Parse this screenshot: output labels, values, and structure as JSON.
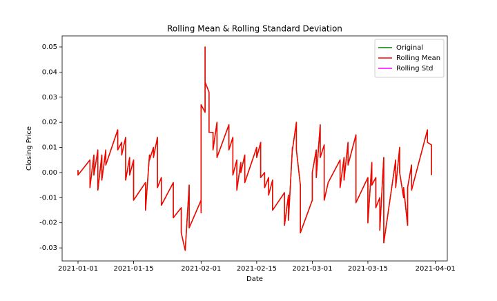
{
  "chart_data": {
    "type": "line",
    "title": "Rolling Mean & Rolling Standard Deviation",
    "x_label": "Date",
    "y_label": "Closing Price",
    "x": [
      "2021-01-01",
      "2021-01-01",
      "2021-01-04",
      "2021-01-04",
      "2021-01-05",
      "2021-01-05",
      "2021-01-06",
      "2021-01-06",
      "2021-01-07",
      "2021-01-07",
      "2021-01-08",
      "2021-01-08",
      "2021-01-11",
      "2021-01-11",
      "2021-01-12",
      "2021-01-12",
      "2021-01-13",
      "2021-01-13",
      "2021-01-14",
      "2021-01-14",
      "2021-01-15",
      "2021-01-15",
      "2021-01-18",
      "2021-01-18",
      "2021-01-19",
      "2021-01-19",
      "2021-01-20",
      "2021-01-20",
      "2021-01-21",
      "2021-01-21",
      "2021-01-22",
      "2021-01-22",
      "2021-01-25",
      "2021-01-25",
      "2021-01-27",
      "2021-01-27",
      "2021-01-28",
      "2021-01-29",
      "2021-01-29",
      "2021-02-01",
      "2021-02-01",
      "2021-02-01",
      "2021-02-02",
      "2021-02-02",
      "2021-02-02",
      "2021-02-03",
      "2021-02-03",
      "2021-02-04",
      "2021-02-04",
      "2021-02-05",
      "2021-02-05",
      "2021-02-08",
      "2021-02-08",
      "2021-02-09",
      "2021-02-09",
      "2021-02-10",
      "2021-02-10",
      "2021-02-11",
      "2021-02-11",
      "2021-02-12",
      "2021-02-12",
      "2021-02-15",
      "2021-02-15",
      "2021-02-16",
      "2021-02-16",
      "2021-02-17",
      "2021-02-17",
      "2021-02-18",
      "2021-02-18",
      "2021-02-19",
      "2021-02-19",
      "2021-02-22",
      "2021-02-22",
      "2021-02-23",
      "2021-02-23",
      "2021-02-24",
      "2021-02-24",
      "2021-02-25",
      "2021-02-25",
      "2021-02-26",
      "2021-02-26",
      "2021-03-01",
      "2021-03-01",
      "2021-03-02",
      "2021-03-02",
      "2021-03-03",
      "2021-03-03",
      "2021-03-04",
      "2021-03-04",
      "2021-03-05",
      "2021-03-08",
      "2021-03-08",
      "2021-03-09",
      "2021-03-09",
      "2021-03-10",
      "2021-03-10",
      "2021-03-12",
      "2021-03-12",
      "2021-03-15",
      "2021-03-15",
      "2021-03-16",
      "2021-03-16",
      "2021-03-17",
      "2021-03-17",
      "2021-03-18",
      "2021-03-18",
      "2021-03-19",
      "2021-03-19",
      "2021-03-22",
      "2021-03-22",
      "2021-03-23",
      "2021-03-23",
      "2021-03-24",
      "2021-03-24",
      "2021-03-25",
      "2021-03-25",
      "2021-03-26",
      "2021-03-26",
      "2021-03-30",
      "2021-03-30",
      "2021-03-31",
      "2021-03-31"
    ],
    "series": [
      {
        "name": "Original",
        "color": "#008000",
        "values": [
          0.001,
          -0.001,
          0.005,
          -0.006,
          0.007,
          -0.001,
          0.009,
          -0.007,
          0.007,
          -0.003,
          0.009,
          0.003,
          0.017,
          0.009,
          0.012,
          0.007,
          0.014,
          -0.003,
          0.006,
          -0.001,
          0.005,
          -0.011,
          -0.004,
          -0.015,
          0.007,
          0.005,
          0.01,
          0.006,
          0.014,
          -0.006,
          -0.002,
          -0.013,
          -0.004,
          -0.018,
          -0.014,
          -0.024,
          -0.031,
          -0.005,
          -0.022,
          -0.011,
          -0.016,
          0.027,
          0.024,
          0.05,
          0.036,
          0.032,
          0.016,
          0.016,
          0.009,
          0.02,
          0.006,
          0.019,
          0.009,
          0.014,
          -0.001,
          0.005,
          -0.007,
          0.004,
          0.0,
          0.007,
          -0.004,
          0.01,
          0.006,
          0.012,
          -0.002,
          0.0,
          -0.006,
          -0.002,
          -0.009,
          -0.003,
          -0.015,
          -0.008,
          -0.021,
          -0.009,
          -0.019,
          0.01,
          0.009,
          0.02,
          0.009,
          -0.005,
          -0.024,
          -0.011,
          0.0,
          0.009,
          -0.002,
          0.019,
          0.006,
          0.011,
          -0.011,
          -0.004,
          0.005,
          -0.006,
          0.006,
          -0.003,
          0.012,
          0.003,
          0.015,
          -0.012,
          -0.002,
          -0.02,
          0.004,
          -0.005,
          -0.002,
          -0.014,
          -0.01,
          -0.023,
          0.006,
          -0.028,
          0.005,
          -0.006,
          0.01,
          0.0,
          -0.01,
          -0.006,
          -0.021,
          -0.006,
          0.003,
          -0.007,
          0.017,
          0.012,
          0.011,
          -0.001
        ]
      },
      {
        "name": "Rolling Mean",
        "color": "#ff0000",
        "values": [
          0.001,
          -0.001,
          0.005,
          -0.006,
          0.007,
          -0.001,
          0.009,
          -0.007,
          0.007,
          -0.003,
          0.009,
          0.003,
          0.017,
          0.009,
          0.012,
          0.007,
          0.014,
          -0.003,
          0.006,
          -0.001,
          0.005,
          -0.011,
          -0.004,
          -0.015,
          0.007,
          0.005,
          0.01,
          0.006,
          0.014,
          -0.006,
          -0.002,
          -0.013,
          -0.004,
          -0.018,
          -0.014,
          -0.024,
          -0.031,
          -0.005,
          -0.022,
          -0.011,
          -0.016,
          0.027,
          0.024,
          0.05,
          0.036,
          0.032,
          0.016,
          0.016,
          0.009,
          0.02,
          0.006,
          0.019,
          0.009,
          0.014,
          -0.001,
          0.005,
          -0.007,
          0.004,
          0.0,
          0.007,
          -0.004,
          0.01,
          0.006,
          0.012,
          -0.002,
          0.0,
          -0.006,
          -0.002,
          -0.009,
          -0.003,
          -0.015,
          -0.008,
          -0.021,
          -0.009,
          -0.019,
          0.01,
          0.009,
          0.02,
          0.009,
          -0.005,
          -0.024,
          -0.011,
          0.0,
          0.009,
          -0.002,
          0.019,
          0.006,
          0.011,
          -0.011,
          -0.004,
          0.005,
          -0.006,
          0.006,
          -0.003,
          0.012,
          0.003,
          0.015,
          -0.012,
          -0.002,
          -0.02,
          0.004,
          -0.005,
          -0.002,
          -0.014,
          -0.01,
          -0.023,
          0.006,
          -0.028,
          0.005,
          -0.006,
          0.01,
          0.0,
          -0.01,
          -0.006,
          -0.021,
          -0.006,
          0.003,
          -0.007,
          0.017,
          0.012,
          0.011,
          -0.001
        ]
      },
      {
        "name": "Rolling Std",
        "color": "#ff00ff",
        "values": [
          null,
          null,
          null,
          null,
          null,
          null,
          null,
          null,
          null,
          null,
          null,
          null,
          null,
          null,
          null,
          null,
          null,
          null,
          null,
          null,
          null,
          null,
          null,
          null,
          null,
          null,
          null,
          null,
          null,
          null,
          null,
          null,
          null,
          null,
          null,
          null,
          null,
          null,
          null,
          null,
          null,
          null,
          null,
          null,
          null,
          null,
          null,
          null,
          null,
          null,
          null,
          null,
          null,
          null,
          null,
          null,
          null,
          null,
          null,
          null,
          null,
          null,
          null,
          null,
          null,
          null,
          null,
          null,
          null,
          null,
          null,
          null,
          null,
          null,
          null,
          null,
          null,
          null,
          null,
          null,
          null,
          null,
          null,
          null,
          null,
          null,
          null,
          null,
          null,
          null,
          null,
          null,
          null,
          null,
          null,
          null,
          null,
          null,
          null,
          null,
          null,
          null,
          null,
          null,
          null,
          null,
          null,
          null,
          null,
          null,
          null,
          null,
          null,
          null,
          null,
          null,
          null,
          null,
          null,
          null,
          null,
          null
        ]
      }
    ],
    "xlim": [
      "2020-12-28",
      "2021-04-04"
    ],
    "xticks": [
      "2021-01-01",
      "2021-01-15",
      "2021-02-01",
      "2021-02-15",
      "2021-03-01",
      "2021-03-15",
      "2021-04-01"
    ],
    "ylim": [
      -0.0352,
      0.0544
    ],
    "yticks": [
      -0.03,
      -0.02,
      -0.01,
      {
        "value": 0,
        "label": "0.00"
      },
      0.01,
      0.02,
      0.03,
      0.04,
      0.05
    ],
    "legend": "upper right"
  }
}
